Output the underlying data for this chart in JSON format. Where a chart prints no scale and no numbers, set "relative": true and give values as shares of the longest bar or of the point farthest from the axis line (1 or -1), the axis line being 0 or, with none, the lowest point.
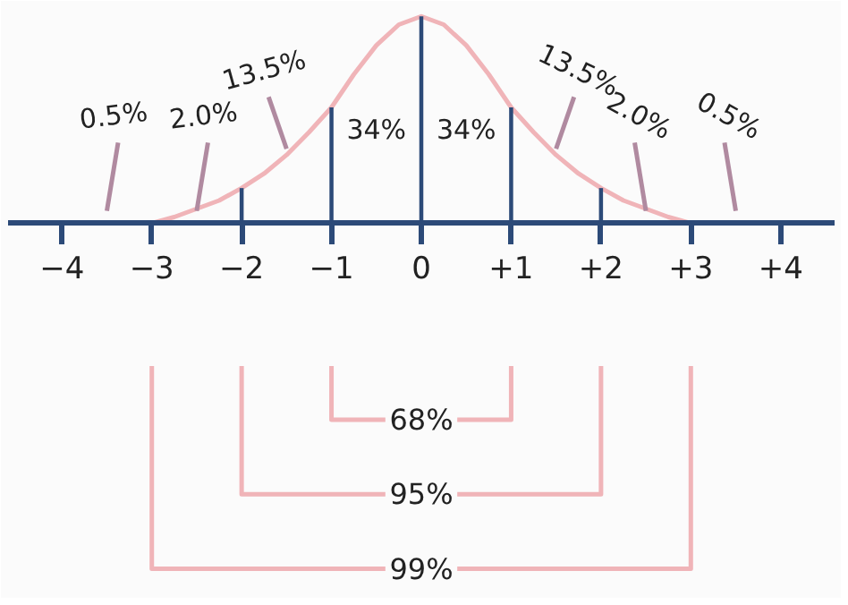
{
  "chart_data": {
    "type": "line",
    "relative": true,
    "xlim": [
      -4.6,
      4.6
    ],
    "xticks": [
      -4,
      -3,
      -2,
      -1,
      0,
      {
        "value": 1,
        "label": "+1"
      },
      {
        "value": 2,
        "label": "+2"
      },
      {
        "value": 3,
        "label": "+3"
      },
      {
        "value": 4,
        "label": "+4"
      }
    ],
    "series": [
      {
        "color": "#f0b4b8",
        "x": [
          -3,
          -2.75,
          -2.5,
          -2.25,
          -2,
          -1.75,
          -1.5,
          -1.25,
          -1,
          -0.75,
          -0.5,
          -0.25,
          0,
          0.25,
          0.5,
          0.75,
          1,
          1.25,
          1.5,
          1.75,
          2,
          2.25,
          2.5,
          2.75,
          3
        ],
        "values": [
          0,
          0.03,
          0.07,
          0.11,
          0.17,
          0.24,
          0.33,
          0.44,
          0.56,
          0.72,
          0.86,
          0.96,
          1.0,
          0.96,
          0.86,
          0.72,
          0.56,
          0.44,
          0.33,
          0.24,
          0.17,
          0.11,
          0.07,
          0.03,
          0
        ]
      },
      {
        "type": "bar",
        "color": "#2c4a78",
        "x": [
          -2,
          -1,
          0,
          1,
          2
        ],
        "values": [
          0.17,
          0.56,
          1.0,
          0.56,
          0.17
        ]
      }
    ],
    "annotations": [
      "0.5%",
      "2.0%",
      "13.5%",
      "34%",
      "34%",
      "13.5%",
      "2.0%",
      "0.5%",
      "68%",
      "95%",
      "99%"
    ]
  }
}
